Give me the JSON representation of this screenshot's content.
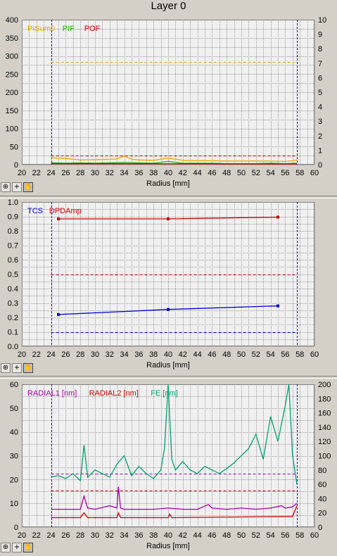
{
  "window": {
    "title": "Layer 0"
  },
  "toolbar": {
    "zoom_icon": "magnifier-icon",
    "add_icon": "plus-icon",
    "pan_icon": "hand-icon",
    "zoom_glyph": "⊕",
    "add_glyph": "+",
    "pan_glyph": "✋"
  },
  "colors": {
    "background": "#d4d0c8",
    "plot_bg": "#f0f0f0",
    "grid": "#9c9c9c",
    "marker_lines": "#0000ff",
    "text": "#000000"
  },
  "chart_data": [
    {
      "type": "line",
      "xlabel": "Radius [mm]",
      "xlim": [
        20,
        60
      ],
      "xticks": [
        20,
        22,
        24,
        26,
        28,
        30,
        32,
        34,
        36,
        38,
        40,
        42,
        44,
        46,
        48,
        50,
        52,
        54,
        56,
        58,
        60
      ],
      "ylim": [
        0,
        400
      ],
      "yticks": [
        0,
        50,
        100,
        150,
        200,
        250,
        300,
        350,
        400
      ],
      "y2lim": [
        0,
        10
      ],
      "y2ticks": [
        0,
        1,
        2,
        3,
        4,
        5,
        6,
        7,
        8,
        9,
        10
      ],
      "grid": true,
      "legend_position": "top-left",
      "vlines": [
        24,
        57.6
      ],
      "series": [
        {
          "name": "PISum0",
          "color": "#e8a800",
          "axis": "left",
          "x": [
            24,
            26,
            28,
            30,
            32,
            33,
            34,
            35,
            36,
            38,
            40,
            42,
            44,
            46,
            48,
            50,
            52,
            54,
            56,
            57.6
          ],
          "y": [
            19,
            17,
            13,
            14,
            15,
            16,
            24,
            15,
            13,
            12,
            18,
            12,
            11,
            11,
            10,
            10,
            10,
            10,
            9,
            12
          ],
          "limits": [
            {
              "value": 283,
              "color": "#e8a800"
            }
          ]
        },
        {
          "name": "PIF",
          "color": "#22aa00",
          "axis": "left",
          "x": [
            24,
            26,
            28,
            30,
            32,
            34,
            36,
            38,
            40,
            42,
            44,
            46,
            48,
            50,
            52,
            54,
            56,
            57.6
          ],
          "y": [
            5,
            4,
            5,
            4,
            5,
            6,
            5,
            4,
            9,
            4,
            4,
            4,
            3,
            3,
            3,
            4,
            3,
            4
          ]
        },
        {
          "name": "POF",
          "color": "#cc0000",
          "axis": "left",
          "x": [
            24,
            57.6
          ],
          "y": [
            3,
            2
          ],
          "limits": [
            {
              "value": 25,
              "color": "#cc0000"
            }
          ]
        }
      ]
    },
    {
      "type": "line",
      "xlabel": "Radius [mm]",
      "xlim": [
        20,
        60
      ],
      "xticks": [
        20,
        22,
        24,
        26,
        28,
        30,
        32,
        34,
        36,
        38,
        40,
        42,
        44,
        46,
        48,
        50,
        52,
        54,
        56,
        58,
        60
      ],
      "ylim": [
        0,
        1
      ],
      "yticks": [
        0,
        0.1,
        0.2,
        0.3,
        0.4,
        0.5,
        0.6,
        0.7,
        0.8,
        0.9,
        1.0
      ],
      "grid": true,
      "legend_position": "top-left",
      "vlines": [
        24,
        57.6
      ],
      "series": [
        {
          "name": "TCS",
          "color": "#0000dd",
          "axis": "left",
          "x": [
            25,
            40,
            55
          ],
          "y": [
            0.22,
            0.255,
            0.28
          ],
          "limits": [
            {
              "value": 0.1,
              "color": "#0000dd"
            }
          ]
        },
        {
          "name": "DPDAmp",
          "color": "#cc0000",
          "axis": "left",
          "x": [
            25,
            40,
            55
          ],
          "y": [
            0.883,
            0.883,
            0.895
          ],
          "limits": [
            {
              "value": 0.5,
              "color": "#cc0000"
            }
          ]
        }
      ]
    },
    {
      "type": "line",
      "xlabel": "Radius [mm]",
      "xlim": [
        20,
        60
      ],
      "xticks": [
        20,
        22,
        24,
        26,
        28,
        30,
        32,
        34,
        36,
        38,
        40,
        42,
        44,
        46,
        48,
        50,
        52,
        54,
        56,
        58,
        60
      ],
      "ylim": [
        0,
        60
      ],
      "yticks": [
        0,
        10,
        20,
        30,
        40,
        50,
        60
      ],
      "y2lim": [
        0,
        200
      ],
      "y2ticks": [
        0,
        20,
        40,
        60,
        80,
        100,
        120,
        140,
        160,
        180,
        200
      ],
      "grid": true,
      "legend_position": "top-left",
      "vlines": [
        24,
        57.6
      ],
      "series": [
        {
          "name": "RADIAL1 [nm]",
          "color": "#aa00aa",
          "axis": "left",
          "x": [
            24,
            26,
            28,
            28.5,
            29,
            30,
            32,
            33,
            33.2,
            33.5,
            34,
            36,
            38,
            40,
            42,
            44,
            45.5,
            46,
            48,
            50,
            52,
            54,
            55.5,
            56,
            57,
            57.6
          ],
          "y": [
            7.5,
            7.5,
            7.5,
            13,
            8,
            7.5,
            9,
            8,
            17,
            8,
            7.5,
            7.5,
            7.5,
            8,
            7.5,
            7.5,
            9.5,
            8,
            7.5,
            8,
            7.5,
            8,
            9,
            8,
            8.5,
            10
          ],
          "limits": [
            {
              "value": 22.5,
              "color": "#aa00aa"
            }
          ]
        },
        {
          "name": "RADIAL2 [nm]",
          "color": "#cc0000",
          "axis": "left",
          "x": [
            24,
            28,
            28.5,
            29,
            33,
            33.2,
            33.5,
            40,
            40.2,
            40.5,
            57,
            57.6
          ],
          "y": [
            4,
            4,
            6,
            4,
            4,
            6,
            4,
            4,
            5.5,
            4,
            4.5,
            9
          ],
          "limits": [
            {
              "value": 15.5,
              "color": "#cc0000"
            }
          ]
        },
        {
          "name": "FE [nm]",
          "color": "#00a070",
          "axis": "right",
          "x": [
            24,
            25,
            26,
            27,
            28,
            28.5,
            29,
            30,
            31,
            32,
            33,
            34,
            35,
            36,
            37,
            38,
            39,
            39.5,
            40,
            40.5,
            41,
            42,
            43,
            44,
            45,
            46,
            47,
            48,
            49,
            50,
            51,
            52,
            53,
            54,
            55,
            56,
            56.5,
            57,
            57.6
          ],
          "y": [
            70,
            72,
            68,
            75,
            65,
            115,
            70,
            80,
            75,
            70,
            88,
            100,
            72,
            85,
            75,
            68,
            80,
            110,
            200,
            95,
            80,
            92,
            80,
            75,
            85,
            80,
            75,
            82,
            90,
            100,
            110,
            130,
            95,
            155,
            120,
            170,
            200,
            100,
            60
          ]
        }
      ]
    }
  ]
}
